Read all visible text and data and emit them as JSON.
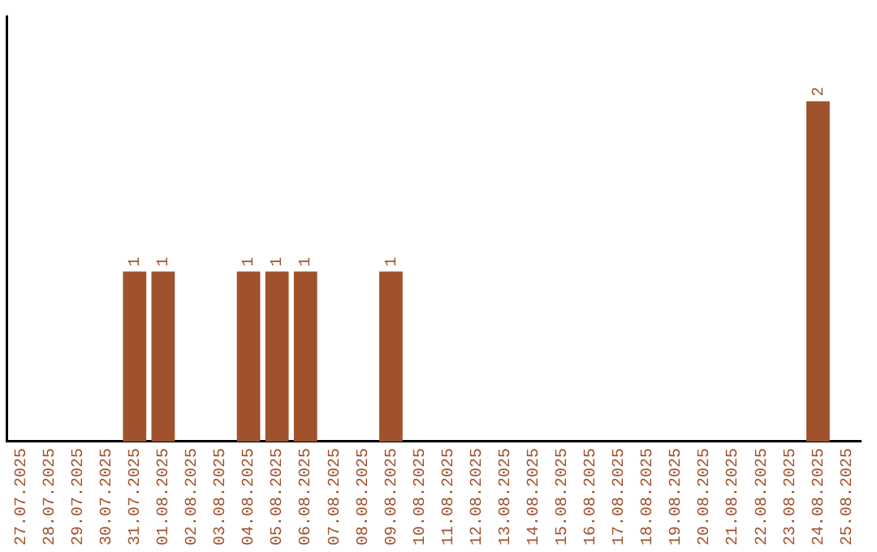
{
  "chart_data": {
    "type": "bar",
    "categories": [
      "27.07.2025",
      "28.07.2025",
      "29.07.2025",
      "30.07.2025",
      "31.07.2025",
      "01.08.2025",
      "02.08.2025",
      "03.08.2025",
      "04.08.2025",
      "05.08.2025",
      "06.08.2025",
      "07.08.2025",
      "08.08.2025",
      "09.08.2025",
      "10.08.2025",
      "11.08.2025",
      "12.08.2025",
      "13.08.2025",
      "14.08.2025",
      "15.08.2025",
      "16.08.2025",
      "17.08.2025",
      "18.08.2025",
      "19.08.2025",
      "20.08.2025",
      "21.08.2025",
      "22.08.2025",
      "23.08.2025",
      "24.08.2025",
      "25.08.2025"
    ],
    "values": [
      0,
      0,
      0,
      0,
      1,
      1,
      0,
      0,
      1,
      1,
      1,
      0,
      0,
      1,
      0,
      0,
      0,
      0,
      0,
      0,
      0,
      0,
      0,
      0,
      0,
      0,
      0,
      0,
      2,
      0
    ],
    "value_labels": [
      null,
      null,
      null,
      null,
      "1",
      "1",
      null,
      null,
      "1",
      "1",
      "1",
      null,
      null,
      "1",
      null,
      null,
      null,
      null,
      null,
      null,
      null,
      null,
      null,
      null,
      null,
      null,
      null,
      null,
      "2",
      null
    ],
    "color": "#a0522d",
    "grid": false,
    "legend": false
  }
}
